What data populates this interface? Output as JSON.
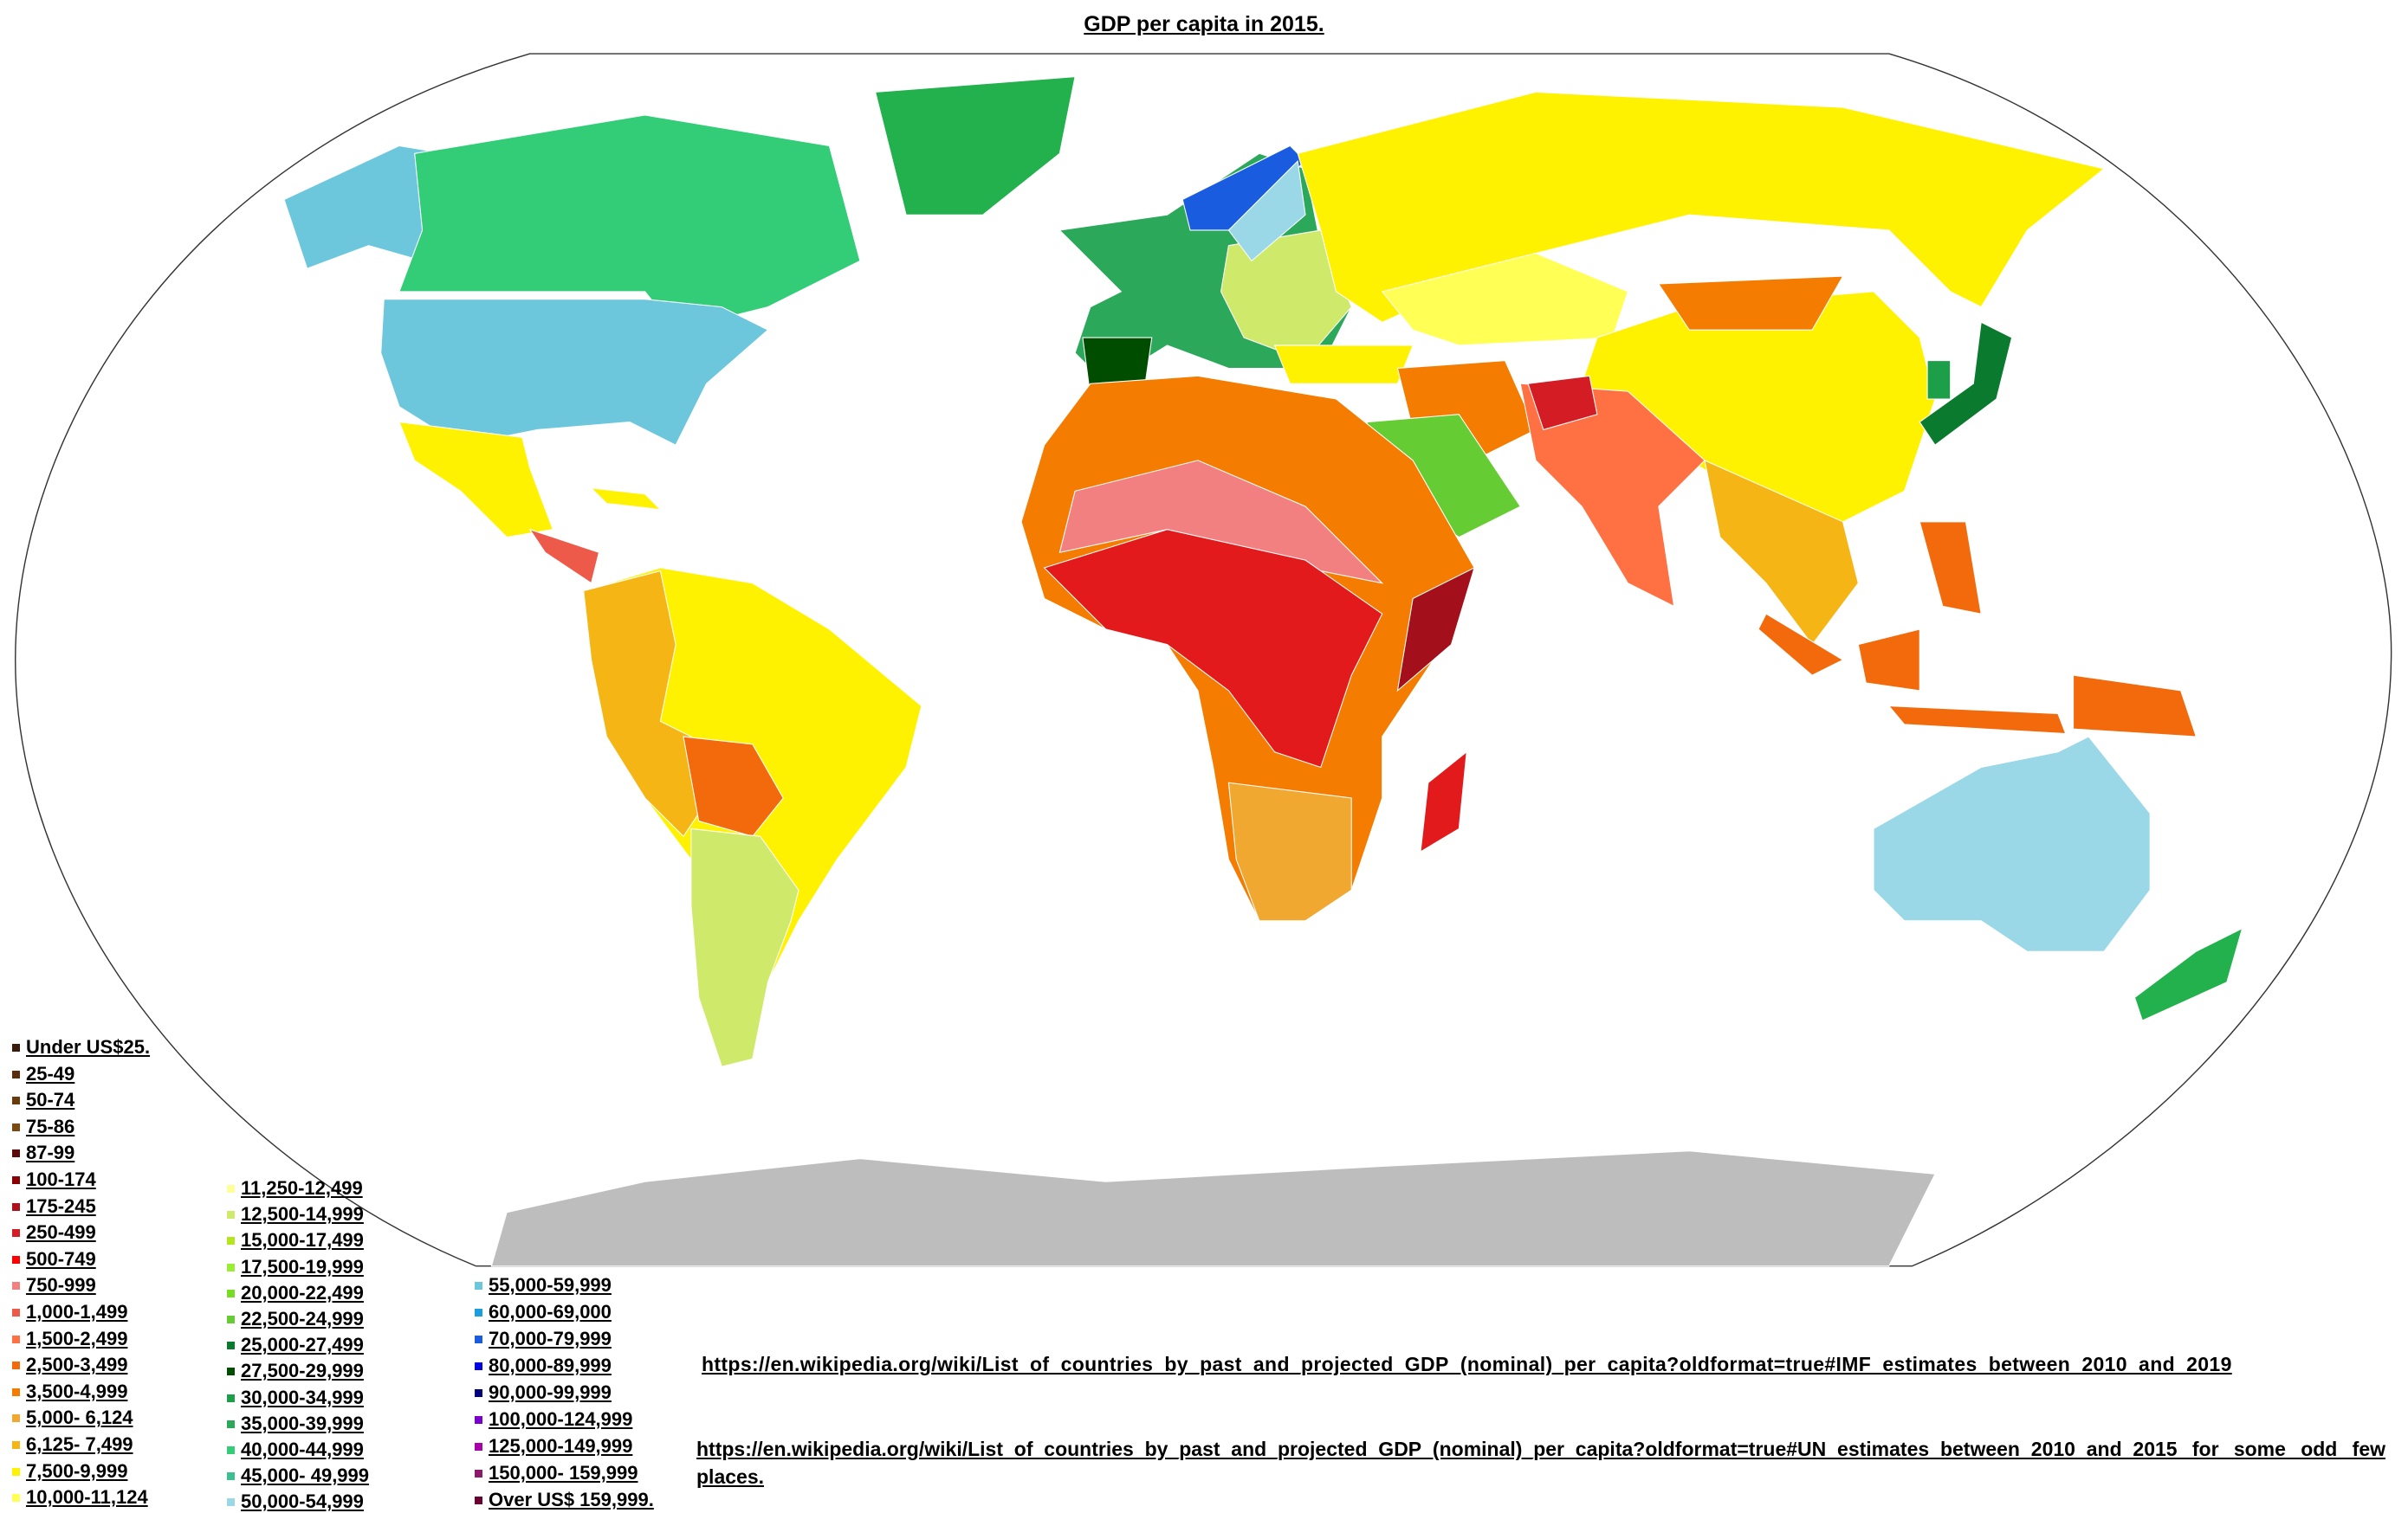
{
  "title": "GDP per capita in 2015.",
  "legend": {
    "columns": [
      [
        {
          "label": "Under US$25.",
          "color": "#3a1a0a"
        },
        {
          "label": "25-49",
          "color": "#5a2d0c"
        },
        {
          "label": "50-74",
          "color": "#6b3a0a"
        },
        {
          "label": "75-86",
          "color": "#7a4a12"
        },
        {
          "label": "87-99",
          "color": "#5a0a0a"
        },
        {
          "label": "100-174",
          "color": "#8b0000"
        },
        {
          "label": "175-245",
          "color": "#b0101c"
        },
        {
          "label": "250-499",
          "color": "#d41c24"
        },
        {
          "label": "500-749",
          "color": "#ff0000"
        },
        {
          "label": "750-999",
          "color": "#f28080"
        },
        {
          "label": "1,000-1,499",
          "color": "#ee5a4a"
        },
        {
          "label": "1,500-2,499",
          "color": "#ff7043"
        },
        {
          "label": "2,500-3,499",
          "color": "#f26a0b"
        },
        {
          "label": "3,500-4,999",
          "color": "#f47c00"
        },
        {
          "label": "5,000- 6,124",
          "color": "#f0a830"
        },
        {
          "label": "6,125- 7,499",
          "color": "#f5b514"
        },
        {
          "label": "7,500-9,999",
          "color": "#fff200"
        },
        {
          "label": "10,000-11,124",
          "color": "#ffff55"
        }
      ],
      [
        {
          "label": "11,250-12,499",
          "color": "#ffff99"
        },
        {
          "label": "12,500-14,999",
          "color": "#cfe96b"
        },
        {
          "label": "15,000-17,499",
          "color": "#b5e61d"
        },
        {
          "label": "17,500-19,999",
          "color": "#99ee33"
        },
        {
          "label": "20,000-22,499",
          "color": "#77dd22"
        },
        {
          "label": "22,500-24,999",
          "color": "#66cc33"
        },
        {
          "label": "25,000-27,499",
          "color": "#0a7a2e"
        },
        {
          "label": "27,500-29,999",
          "color": "#004d00"
        },
        {
          "label": "30,000-34,999",
          "color": "#1d9e48"
        },
        {
          "label": "35,000-39,999",
          "color": "#2ca85a"
        },
        {
          "label": "40,000-44,999",
          "color": "#33cc77"
        },
        {
          "label": "45,000- 49,999",
          "color": "#3dbf8f"
        },
        {
          "label": "50,000-54,999",
          "color": "#9ad8e8"
        }
      ],
      [
        {
          "label": "55,000-59,999",
          "color": "#6cc7dc"
        },
        {
          "label": "60,000-69,000",
          "color": "#1a9ee0"
        },
        {
          "label": "70,000-79,999",
          "color": "#1a5ce0"
        },
        {
          "label": "80,000-89,999",
          "color": "#0000e0"
        },
        {
          "label": "90,000-99,999",
          "color": "#00007a"
        },
        {
          "label": "100,000-124,999",
          "color": "#7a00cc"
        },
        {
          "label": "125,000-149,999",
          "color": "#aa00aa"
        },
        {
          "label": "150,000- 159,999",
          "color": "#8b1a6a"
        },
        {
          "label": "Over US$ 159,999.",
          "color": "#6a0030"
        }
      ]
    ]
  },
  "sources": [
    "https://en.wikipedia.org/wiki/List_of_countries_by_past_and_projected_GDP_(nominal)_per_capita?oldformat=true#IMF_estimates_between_2010_and_2019",
    "https://en.wikipedia.org/wiki/List_of_countries_by_past_and_projected_GDP_(nominal)_per_capita?oldformat=true#UN_estimates_between_2010_and_2015 for some odd few places."
  ]
}
